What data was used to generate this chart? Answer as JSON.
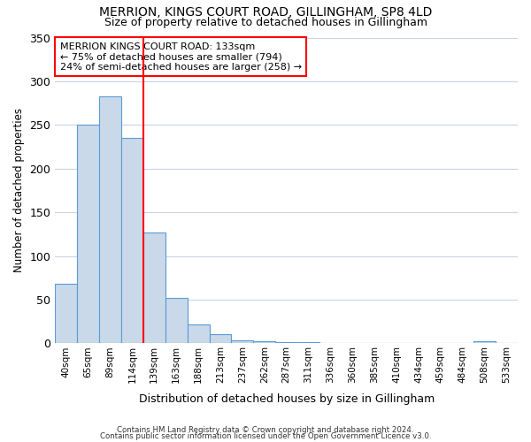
{
  "title1": "MERRION, KINGS COURT ROAD, GILLINGHAM, SP8 4LD",
  "title2": "Size of property relative to detached houses in Gillingham",
  "xlabel": "Distribution of detached houses by size in Gillingham",
  "ylabel": "Number of detached properties",
  "categories": [
    "40sqm",
    "65sqm",
    "89sqm",
    "114sqm",
    "139sqm",
    "163sqm",
    "188sqm",
    "213sqm",
    "237sqm",
    "262sqm",
    "287sqm",
    "311sqm",
    "336sqm",
    "360sqm",
    "385sqm",
    "410sqm",
    "434sqm",
    "459sqm",
    "484sqm",
    "508sqm",
    "533sqm"
  ],
  "values": [
    68,
    250,
    283,
    235,
    127,
    52,
    22,
    11,
    4,
    3,
    2,
    2,
    0,
    0,
    0,
    0,
    0,
    0,
    0,
    3,
    0
  ],
  "bar_color": "#c9d9ea",
  "bar_edge_color": "#5b9bd5",
  "red_line_index": 4,
  "annotation_title": "MERRION KINGS COURT ROAD: 133sqm",
  "annotation_line1": "← 75% of detached houses are smaller (794)",
  "annotation_line2": "24% of semi-detached houses are larger (258) →",
  "ylim": [
    0,
    350
  ],
  "yticks": [
    0,
    50,
    100,
    150,
    200,
    250,
    300,
    350
  ],
  "footer1": "Contains HM Land Registry data © Crown copyright and database right 2024.",
  "footer2": "Contains public sector information licensed under the Open Government Licence v3.0.",
  "background_color": "#ffffff",
  "grid_color": "#c8d4e8"
}
